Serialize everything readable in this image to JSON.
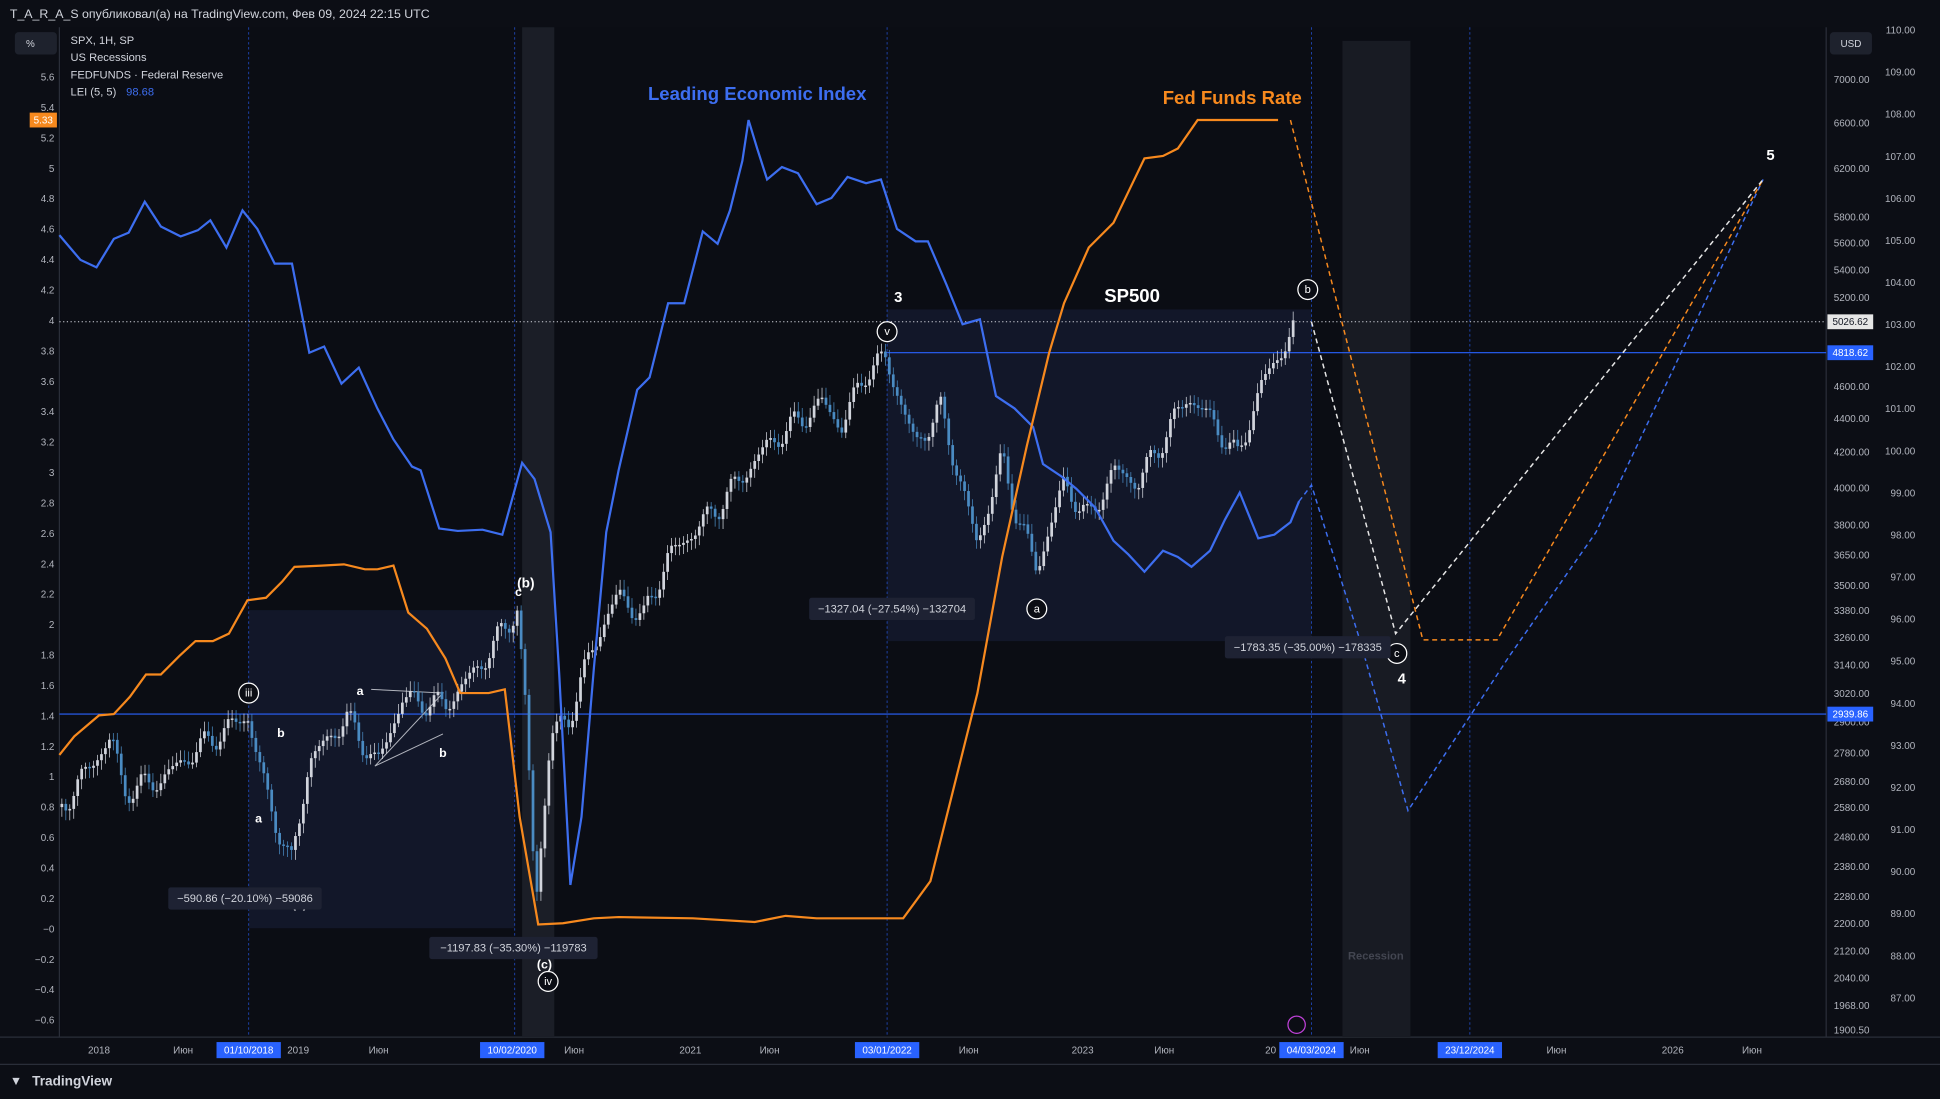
{
  "header": {
    "title": "T_A_R_A_S опубликовал(а) на TradingView.com, Фев 09, 2024 22:15 UTC"
  },
  "scale_buttons": {
    "left": "%",
    "right": "USD"
  },
  "legend": {
    "items": [
      "SPX, 1H, SP",
      "US Recessions",
      "FEDFUNDS · Federal Reserve",
      "LEI (5, 5)"
    ],
    "lei_value": "98.68"
  },
  "left_axis": {
    "labels": [
      "5.6",
      "5.4",
      "5.2",
      "5",
      "4.8",
      "4.6",
      "4.4",
      "4.2",
      "4",
      "3.8",
      "3.6",
      "3.4",
      "3.2",
      "3",
      "2.8",
      "2.6",
      "2.4",
      "2.2",
      "2",
      "1.8",
      "1.6",
      "1.4",
      "1.2",
      "1",
      "0.8",
      "0.6",
      "0.4",
      "0.2",
      "−0",
      "−0.2",
      "−0.4",
      "−0.6"
    ],
    "badge": "5.33"
  },
  "right_axis_lei": {
    "labels": [
      "110.00",
      "109.00",
      "108.00",
      "107.00",
      "106.00",
      "105.00",
      "104.00",
      "103.00",
      "102.00",
      "101.00",
      "100.00",
      "99.00",
      "98.00",
      "97.00",
      "96.00",
      "95.00",
      "94.00",
      "93.00",
      "92.00",
      "91.00",
      "90.00",
      "89.00",
      "88.00",
      "87.00"
    ]
  },
  "right_axis_spx": {
    "labels": [
      "7000.00",
      "6600.00",
      "6200.00",
      "5800.00",
      "5600.00",
      "5400.00",
      "5200.00",
      "4600.00",
      "4400.00",
      "4200.00",
      "4000.00",
      "3800.00",
      "3650.00",
      "3500.00",
      "3380.00",
      "3260.00",
      "3140.00",
      "3020.00",
      "2900.00",
      "2780.00",
      "2680.00",
      "2580.00",
      "2480.00",
      "2380.00",
      "2280.00",
      "2200.00",
      "2120.00",
      "2040.00",
      "1968.00",
      "1900.50"
    ],
    "badges": [
      "5026.62",
      "4818.62",
      "2939.86"
    ]
  },
  "time_axis": {
    "labels": [
      "2018",
      "Июн",
      "2019",
      "Июн",
      "Июн",
      "2021",
      "Июн",
      "Июн",
      "2023",
      "Июн",
      "20",
      "Июн",
      "Июн",
      "2026",
      "Июн"
    ],
    "badges": [
      "01/10/2018",
      "10/02/2020",
      "03/01/2022",
      "04/03/2024",
      "23/12/2024"
    ]
  },
  "annotations": {
    "titles": [
      "Leading Economic Index",
      "Fed Funds Rate",
      "SP500"
    ],
    "waves": [
      "3",
      "5",
      "4",
      "(b)",
      "c",
      "a",
      "b",
      "b",
      "a",
      "(a)",
      "(c)"
    ],
    "circled": [
      "b",
      "v",
      "a",
      "c",
      "iii",
      "iv"
    ],
    "measurements": [
      "−590.86 (−20.10%) −59086",
      "−1197.83 (−35.30%) −119783",
      "−1327.04 (−27.54%) −132704",
      "−1783.35 (−35.00%) −178335"
    ],
    "recession": "Recession"
  },
  "footer": {
    "brand": "TradingView"
  }
}
